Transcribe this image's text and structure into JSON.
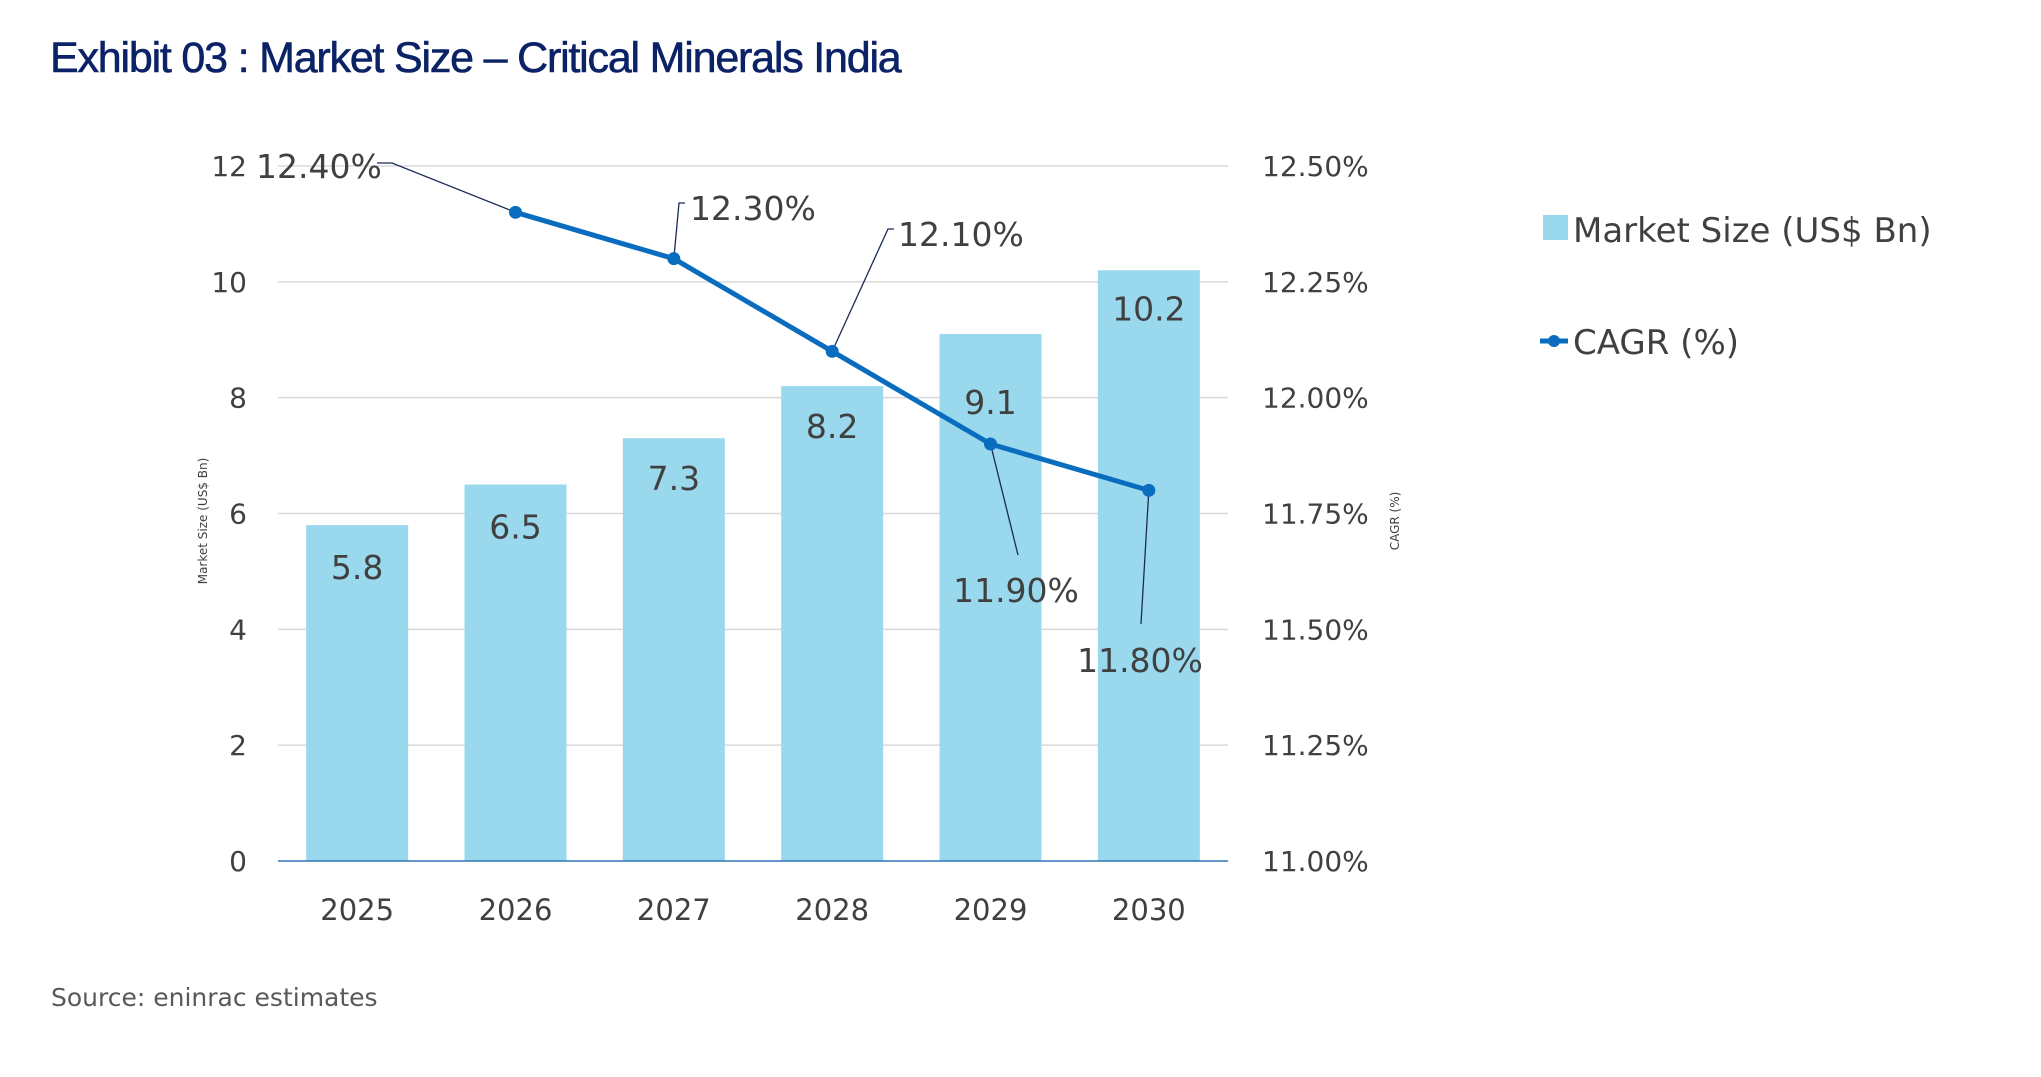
{
  "title": "Exhibit 03 : Market Size – Critical Minerals India",
  "source": "Source: eninrac estimates",
  "colors": {
    "title": "#0b2366",
    "bar": "#9ad8ee",
    "line": "#0a6cbf",
    "leader": "#1b2a5a",
    "grid": "#d9d9d9",
    "axis": "#2e75b6",
    "text": "#404040"
  },
  "chart_data": {
    "type": "bar+line",
    "title": "Exhibit 03 : Market Size – Critical Minerals India",
    "categories": [
      "2025",
      "2026",
      "2027",
      "2028",
      "2029",
      "2030"
    ],
    "series": [
      {
        "name": "Market Size (US$ Bn)",
        "type": "bar",
        "axis": "left",
        "values": [
          5.8,
          6.5,
          7.3,
          8.2,
          9.1,
          10.2
        ],
        "labels": [
          "5.8",
          "6.5",
          "7.3",
          "8.2",
          "9.1",
          "10.2"
        ]
      },
      {
        "name": "CAGR (%)",
        "type": "line",
        "axis": "right",
        "values": [
          null,
          12.4,
          12.3,
          12.1,
          11.9,
          11.8
        ],
        "labels": [
          null,
          "12.40%",
          "12.30%",
          "12.10%",
          "11.90%",
          "11.80%"
        ]
      }
    ],
    "y_left": {
      "label": "Market Size (US$ Bn)",
      "range": [
        0,
        12
      ],
      "ticks": [
        0,
        2,
        4,
        6,
        8,
        10,
        12
      ],
      "tick_labels": [
        "0",
        "2",
        "4",
        "6",
        "8",
        "10",
        "12"
      ]
    },
    "y_right": {
      "label": "CAGR (%)",
      "range": [
        11.0,
        12.5
      ],
      "ticks": [
        11.0,
        11.25,
        11.5,
        11.75,
        12.0,
        12.25,
        12.5
      ],
      "tick_labels": [
        "11.00%",
        "11.25%",
        "11.50%",
        "11.75%",
        "12.00%",
        "12.25%",
        "12.50%"
      ]
    },
    "xlabel": "",
    "grid": true,
    "legend": {
      "position": "right",
      "entries": [
        "Market Size (US$ Bn)",
        "CAGR (%)"
      ]
    }
  }
}
